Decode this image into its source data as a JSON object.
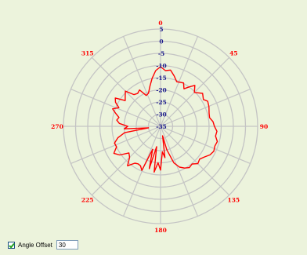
{
  "chart_data": {
    "type": "polar-line",
    "angle_ticks": [
      "0",
      "45",
      "90",
      "135",
      "180",
      "225",
      "270",
      "315"
    ],
    "radial_ticks": [
      "5",
      "0",
      "-5",
      "-10",
      "-15",
      "-20",
      "-25",
      "-30",
      "-35"
    ],
    "r_range": [
      -35,
      5
    ],
    "grid": true,
    "line_color": "#ff0000",
    "series": [
      {
        "angles": [
          0,
          5,
          10,
          15,
          20,
          28,
          32,
          36,
          40,
          45,
          52,
          58,
          62,
          68,
          75,
          80,
          85,
          90,
          95,
          100,
          105,
          110,
          115,
          120,
          125,
          130,
          135,
          140,
          145,
          150,
          155,
          160,
          165,
          168,
          172,
          176,
          180,
          184,
          188,
          191,
          195,
          199,
          203,
          207,
          211,
          215,
          220,
          225,
          230,
          235,
          240,
          245,
          250,
          255,
          260,
          263,
          266,
          270,
          274,
          278,
          282,
          286,
          290,
          294,
          298,
          302,
          306,
          310,
          315,
          320,
          325,
          330,
          335,
          340,
          345,
          350,
          355,
          360
        ],
        "values": [
          -10.5,
          -12.0,
          -11.5,
          -13.5,
          -15.5,
          -14.8,
          -16.8,
          -15.0,
          -13.0,
          -15.3,
          -13.0,
          -14.2,
          -13.0,
          -13.5,
          -14.3,
          -14.5,
          -13.3,
          -12.8,
          -11.7,
          -12.0,
          -10.8,
          -11.2,
          -10.8,
          -11.5,
          -13.0,
          -14.0,
          -13.3,
          -14.8,
          -14.3,
          -15.2,
          -16.5,
          -19.0,
          -25.0,
          -31.0,
          -22.0,
          -24.5,
          -17.0,
          -20.0,
          -16.0,
          -26.5,
          -17.0,
          -25.0,
          -15.3,
          -16.8,
          -17.0,
          -16.5,
          -13.8,
          -17.0,
          -18.0,
          -14.5,
          -12.8,
          -15.0,
          -14.8,
          -16.8,
          -20.0,
          -30.0,
          -20.0,
          -21.5,
          -18.0,
          -16.8,
          -17.5,
          -15.8,
          -14.0,
          -16.2,
          -14.0,
          -13.0,
          -17.0,
          -16.0,
          -14.5,
          -18.0,
          -18.5,
          -17.7,
          -21.0,
          -20.5,
          -18.0,
          -15.0,
          -12.0,
          -10.5
        ]
      }
    ]
  },
  "controls": {
    "angle_offset_label": "Angle Offset",
    "angle_offset_value": "30",
    "angle_offset_checked": true
  }
}
